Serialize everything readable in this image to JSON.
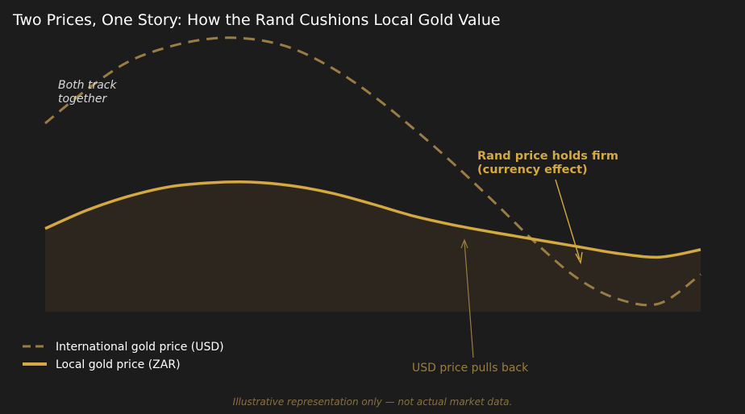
{
  "chart_data": {
    "type": "line",
    "title": "Two Prices, One Story: How the Rand Cushions Local Gold Value",
    "xlabel": "",
    "ylabel": "",
    "grid": false,
    "legend_position": "bottom-left",
    "x": [
      0,
      1,
      2,
      3,
      4,
      5,
      6,
      7,
      8,
      9,
      10,
      11,
      12,
      13,
      14,
      15,
      16
    ],
    "xlim": [
      0,
      16
    ],
    "ylim": [
      0,
      100
    ],
    "series": [
      {
        "name": "International gold price (USD)",
        "style": "dashed",
        "color": "#9a7d45",
        "values": [
          68,
          80,
          90,
          95.5,
          98.5,
          98.5,
          95.2,
          88,
          78,
          66,
          53,
          39,
          24.5,
          12,
          4.5,
          3,
          13.5
        ]
      },
      {
        "name": "Local gold price (ZAR)",
        "style": "solid",
        "fill": true,
        "color": "#d4a843",
        "values": [
          30,
          36.5,
          41.5,
          45,
          46.5,
          46.8,
          45.5,
          42.8,
          38.8,
          34.5,
          31.2,
          28.5,
          26,
          23.5,
          21,
          19.7,
          22.4
        ]
      }
    ],
    "annotations": [
      {
        "text_lines": [
          "Both track",
          "together"
        ],
        "style": "italic",
        "color": "#d8d8d8"
      },
      {
        "text_lines": [
          "Rand price holds firm",
          "(currency effect)"
        ],
        "style": "bold",
        "color": "#d4a843",
        "points_to": {
          "x": 13,
          "y": 23.5
        }
      },
      {
        "text_lines": [
          "USD price pulls back"
        ],
        "style": "normal",
        "color": "#9a7d45",
        "points_to": {
          "x": 10.8,
          "y": 30
        }
      }
    ],
    "footnote": "Illustrative representation only — not actual market data."
  }
}
